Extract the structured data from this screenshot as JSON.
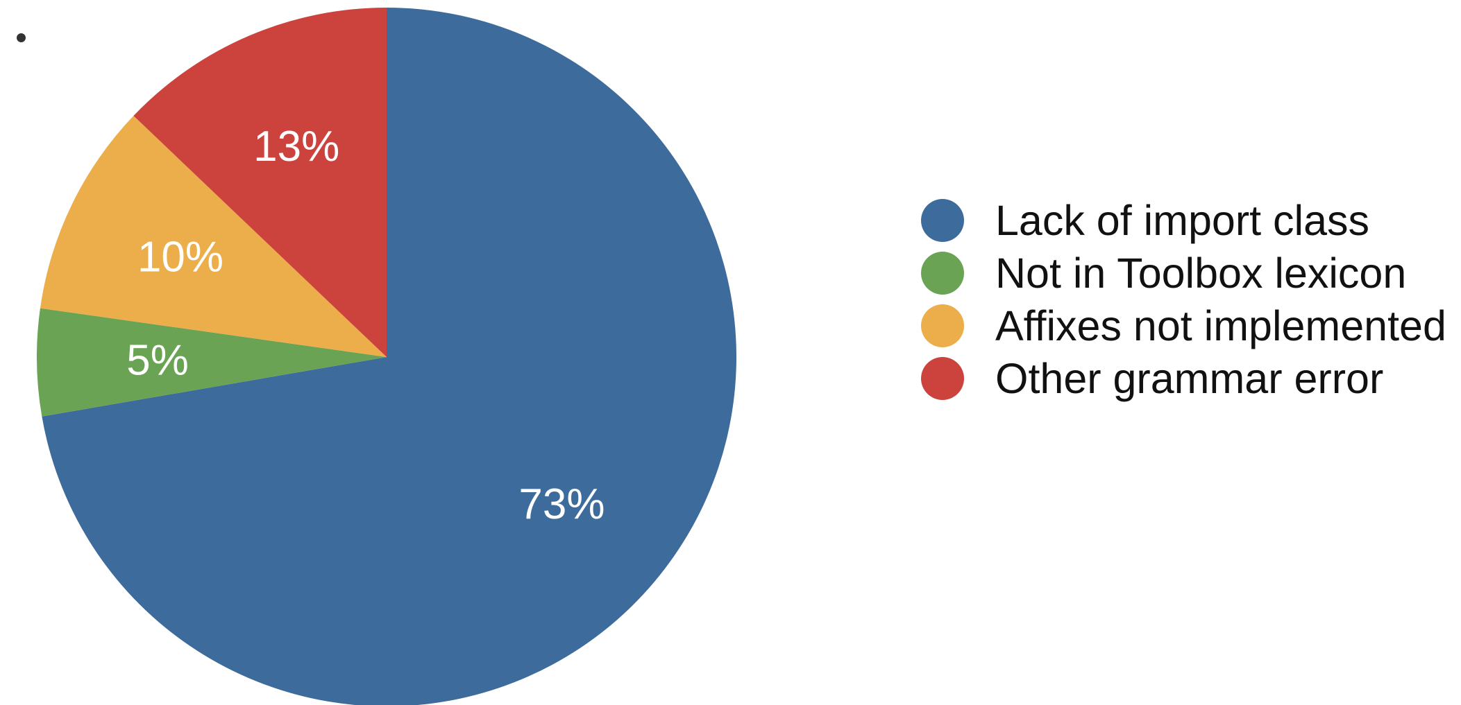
{
  "chart_data": {
    "type": "pie",
    "start_angle_deg": 0,
    "direction": "clockwise",
    "slices": [
      {
        "label": "Lack of import class",
        "value": 73,
        "display": "73%",
        "color": "#3d6b9b"
      },
      {
        "label": "Not in Toolbox lexicon",
        "value": 5,
        "display": "5%",
        "color": "#6ba355"
      },
      {
        "label": "Affixes not implemented",
        "value": 10,
        "display": "10%",
        "color": "#ecad4b"
      },
      {
        "label": "Other grammar error",
        "value": 13,
        "display": "13%",
        "color": "#cc433d"
      }
    ],
    "legend_position": "right"
  }
}
